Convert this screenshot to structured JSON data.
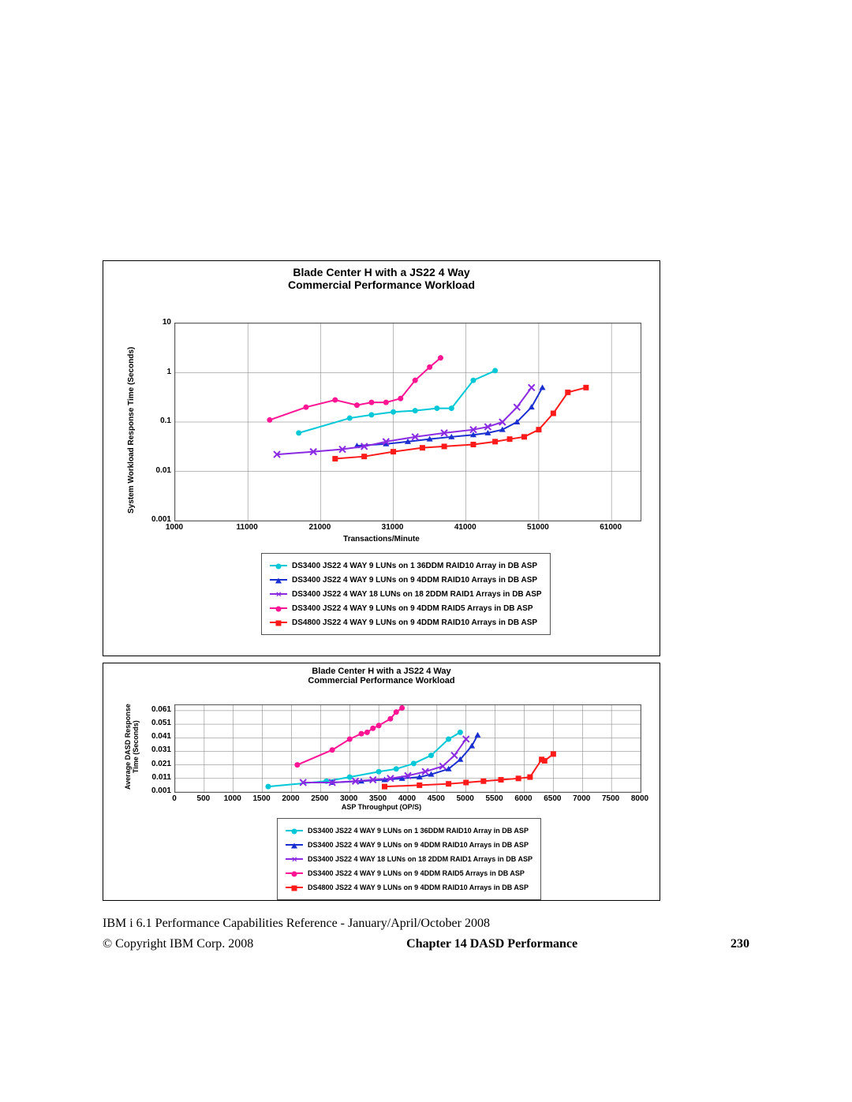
{
  "colors": {
    "cyan": "#00c8d7",
    "blue": "#1a2fd0",
    "purple": "#8a2be2",
    "magenta": "#ff1493",
    "red": "#ff1a1a",
    "border": "#555555",
    "grid": "#888888"
  },
  "markers": {
    "cyan": "circle",
    "blue": "triangle",
    "purple": "x",
    "magenta": "circle",
    "red": "square"
  },
  "chart1": {
    "title_l1": "Blade Center H with a JS22 4 Way",
    "title_l2": "Commercial Performance Workload",
    "title_fontsize": 14,
    "xlabel": "Transactions/Minute",
    "ylabel": "System Workload Response Time (Seconds)",
    "label_fontsize": 10,
    "xmin": 1000,
    "xmax": 65000,
    "xtick_step": 10000,
    "xticks": [
      1000,
      11000,
      21000,
      31000,
      41000,
      51000,
      61000
    ],
    "yscale": "log",
    "ymin": 0.001,
    "ymax": 10,
    "yticks": [
      0.001,
      0.01,
      0.1,
      1,
      10
    ],
    "series": [
      {
        "key": "cyan",
        "label": "DS3400 JS22 4 WAY 9 LUNs on 1 36DDM RAID10 Array in DB ASP",
        "pts": [
          [
            18000,
            0.06
          ],
          [
            25000,
            0.12
          ],
          [
            28000,
            0.14
          ],
          [
            31000,
            0.16
          ],
          [
            34000,
            0.17
          ],
          [
            37000,
            0.19
          ],
          [
            39000,
            0.19
          ],
          [
            42000,
            0.7
          ],
          [
            45000,
            1.1
          ]
        ]
      },
      {
        "key": "blue",
        "label": "DS3400 JS22 4 WAY 9 LUNs on 9 4DDM RAID10 Arrays in DB ASP",
        "pts": [
          [
            26000,
            0.033
          ],
          [
            30000,
            0.036
          ],
          [
            33000,
            0.04
          ],
          [
            36000,
            0.045
          ],
          [
            39000,
            0.05
          ],
          [
            42000,
            0.055
          ],
          [
            44000,
            0.06
          ],
          [
            46000,
            0.07
          ],
          [
            48000,
            0.1
          ],
          [
            50000,
            0.2
          ],
          [
            51500,
            0.5
          ]
        ]
      },
      {
        "key": "purple",
        "label": "DS3400 JS22 4 WAY 18 LUNs on 18 2DDM RAID1 Arrays in DB ASP",
        "pts": [
          [
            15000,
            0.022
          ],
          [
            20000,
            0.025
          ],
          [
            24000,
            0.028
          ],
          [
            27000,
            0.032
          ],
          [
            30000,
            0.04
          ],
          [
            34000,
            0.05
          ],
          [
            38000,
            0.06
          ],
          [
            42000,
            0.07
          ],
          [
            44000,
            0.08
          ],
          [
            46000,
            0.1
          ],
          [
            48000,
            0.2
          ],
          [
            50000,
            0.5
          ]
        ]
      },
      {
        "key": "magenta",
        "label": "DS3400 JS22 4 WAY 9 LUNs on 9 4DDM RAID5 Arrays in DB ASP",
        "pts": [
          [
            14000,
            0.11
          ],
          [
            19000,
            0.2
          ],
          [
            23000,
            0.28
          ],
          [
            26000,
            0.22
          ],
          [
            28000,
            0.25
          ],
          [
            30000,
            0.25
          ],
          [
            32000,
            0.3
          ],
          [
            34000,
            0.7
          ],
          [
            36000,
            1.3
          ],
          [
            37500,
            2.0
          ]
        ]
      },
      {
        "key": "red",
        "label": "DS4800 JS22 4 WAY 9 LUNs on 9 4DDM RAID10 Arrays in DB ASP",
        "pts": [
          [
            23000,
            0.018
          ],
          [
            27000,
            0.02
          ],
          [
            31000,
            0.025
          ],
          [
            35000,
            0.03
          ],
          [
            38000,
            0.032
          ],
          [
            42000,
            0.035
          ],
          [
            45000,
            0.04
          ],
          [
            47000,
            0.045
          ],
          [
            49000,
            0.05
          ],
          [
            51000,
            0.07
          ],
          [
            53000,
            0.15
          ],
          [
            55000,
            0.4
          ],
          [
            57500,
            0.5
          ]
        ]
      }
    ]
  },
  "chart2": {
    "title_l1": "Blade Center H with a JS22 4 Way",
    "title_l2": "Commercial Performance Workload",
    "title_fontsize": 11,
    "xlabel": "ASP Throughput (OP/S)",
    "ylabel": "Average DASD Response Time (Seconds)",
    "label_fontsize": 9,
    "xmin": 0,
    "xmax": 8000,
    "xtick_step": 500,
    "xticks": [
      0,
      500,
      1000,
      1500,
      2000,
      2500,
      3000,
      3500,
      4000,
      4500,
      5000,
      5500,
      6000,
      6500,
      7000,
      7500,
      8000
    ],
    "ymin": 0.001,
    "ymax": 0.065,
    "yticks": [
      0.001,
      0.011,
      0.021,
      0.031,
      0.041,
      0.051,
      0.061
    ],
    "series": [
      {
        "key": "cyan",
        "label": "DS3400 JS22 4 WAY 9 LUNs on 1 36DDM RAID10 Array in DB ASP",
        "pts": [
          [
            1600,
            0.005
          ],
          [
            2600,
            0.009
          ],
          [
            3000,
            0.012
          ],
          [
            3500,
            0.016
          ],
          [
            3800,
            0.018
          ],
          [
            4100,
            0.022
          ],
          [
            4400,
            0.028
          ],
          [
            4700,
            0.04
          ],
          [
            4900,
            0.045
          ]
        ]
      },
      {
        "key": "blue",
        "label": "DS3400 JS22 4 WAY 9 LUNs on 9 4DDM RAID10 Arrays in DB ASP",
        "pts": [
          [
            2700,
            0.008
          ],
          [
            3200,
            0.009
          ],
          [
            3600,
            0.01
          ],
          [
            3900,
            0.011
          ],
          [
            4200,
            0.012
          ],
          [
            4400,
            0.014
          ],
          [
            4700,
            0.018
          ],
          [
            4900,
            0.025
          ],
          [
            5100,
            0.035
          ],
          [
            5200,
            0.043
          ]
        ]
      },
      {
        "key": "purple",
        "label": "DS3400 JS22 4 WAY 18 LUNs on 18 2DDM RAID1 Arrays in DB ASP",
        "pts": [
          [
            2200,
            0.008
          ],
          [
            2700,
            0.008
          ],
          [
            3100,
            0.009
          ],
          [
            3400,
            0.01
          ],
          [
            3700,
            0.011
          ],
          [
            4000,
            0.013
          ],
          [
            4300,
            0.016
          ],
          [
            4600,
            0.02
          ],
          [
            4800,
            0.028
          ],
          [
            5000,
            0.04
          ]
        ]
      },
      {
        "key": "magenta",
        "label": "DS3400 JS22 4 WAY 9 LUNs on 9 4DDM RAID5 Arrays in DB ASP",
        "pts": [
          [
            2100,
            0.021
          ],
          [
            2700,
            0.032
          ],
          [
            3000,
            0.04
          ],
          [
            3200,
            0.044
          ],
          [
            3300,
            0.045
          ],
          [
            3400,
            0.048
          ],
          [
            3500,
            0.05
          ],
          [
            3700,
            0.055
          ],
          [
            3800,
            0.06
          ],
          [
            3900,
            0.063
          ]
        ]
      },
      {
        "key": "red",
        "label": "DS4800 JS22 4 WAY 9 LUNs on 9 4DDM RAID10 Arrays in DB ASP",
        "pts": [
          [
            3600,
            0.005
          ],
          [
            4200,
            0.006
          ],
          [
            4700,
            0.007
          ],
          [
            5000,
            0.008
          ],
          [
            5300,
            0.009
          ],
          [
            5600,
            0.01
          ],
          [
            5900,
            0.011
          ],
          [
            6100,
            0.012
          ],
          [
            6300,
            0.025
          ],
          [
            6350,
            0.024
          ],
          [
            6500,
            0.029
          ]
        ]
      }
    ]
  },
  "footer": {
    "doc": "IBM i 6.1 Performance Capabilities Reference - January/April/October 2008",
    "copyright": "© Copyright IBM Corp. 2008",
    "chapter": "Chapter 14  DASD Performance",
    "page": "230"
  }
}
